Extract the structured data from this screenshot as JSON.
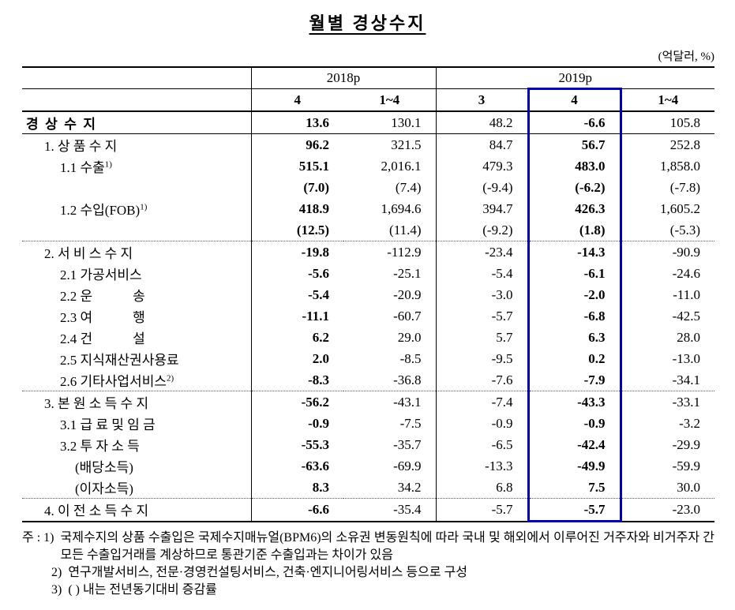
{
  "title": "월별 경상수지",
  "unit_note": "(억달러, %)",
  "colors": {
    "highlight_blue": "#0000b4",
    "rule": "#000000"
  },
  "table": {
    "column_groups": [
      {
        "label": "2018p"
      },
      {
        "label": "2019p"
      }
    ],
    "sub_headers": [
      "4",
      "1~4",
      "3",
      "4",
      "1~4"
    ],
    "rows": [
      {
        "label": "경  상  수  지",
        "indent": 0,
        "bold": true,
        "underline": true,
        "values": [
          "13.6",
          "130.1",
          "48.2",
          "-6.6",
          "105.8"
        ]
      },
      {
        "label": "1. 상 품 수 지",
        "indent": 1,
        "values": [
          "96.2",
          "321.5",
          "84.7",
          "56.7",
          "252.8"
        ]
      },
      {
        "label": "1.1 수출",
        "sup": "1)",
        "indent": 2,
        "values": [
          "515.1",
          "2,016.1",
          "479.3",
          "483.0",
          "1,858.0"
        ]
      },
      {
        "label": "",
        "indent": 2,
        "values": [
          "(7.0)",
          "(7.4)",
          "(-9.4)",
          "(-6.2)",
          "(-7.8)"
        ]
      },
      {
        "label": "1.2 수입(FOB)",
        "sup": "1)",
        "indent": 2,
        "values": [
          "418.9",
          "1,694.6",
          "394.7",
          "426.3",
          "1,605.2"
        ]
      },
      {
        "label": "",
        "indent": 2,
        "values": [
          "(12.5)",
          "(11.4)",
          "(-9.2)",
          "(1.8)",
          "(-5.3)"
        ]
      },
      {
        "label": "2. 서 비 스 수 지",
        "indent": 1,
        "separator": "dotted",
        "values": [
          "-19.8",
          "-112.9",
          "-23.4",
          "-14.3",
          "-90.9"
        ]
      },
      {
        "label": "2.1 가공서비스",
        "indent": 2,
        "values": [
          "-5.6",
          "-25.1",
          "-5.4",
          "-6.1",
          "-24.6"
        ]
      },
      {
        "label": "2.2 운　　　송",
        "indent": 2,
        "values": [
          "-5.4",
          "-20.9",
          "-3.0",
          "-2.0",
          "-11.0"
        ]
      },
      {
        "label": "2.3 여　　　행",
        "indent": 2,
        "values": [
          "-11.1",
          "-60.7",
          "-5.7",
          "-6.8",
          "-42.5"
        ]
      },
      {
        "label": "2.4 건　　　설",
        "indent": 2,
        "values": [
          "6.2",
          "29.0",
          "5.7",
          "6.3",
          "28.0"
        ]
      },
      {
        "label": "2.5 지식재산권사용료",
        "indent": 2,
        "values": [
          "2.0",
          "-8.5",
          "-9.5",
          "0.2",
          "-13.0"
        ]
      },
      {
        "label": "2.6 기타사업서비스",
        "sup": "2)",
        "indent": 2,
        "values": [
          "-8.3",
          "-36.8",
          "-7.6",
          "-7.9",
          "-34.1"
        ]
      },
      {
        "label": "3. 본 원 소 득 수 지",
        "indent": 1,
        "separator": "dotted",
        "values": [
          "-56.2",
          "-43.1",
          "-7.4",
          "-43.3",
          "-33.1"
        ]
      },
      {
        "label": "3.1 급 료 및 임 금",
        "indent": 2,
        "values": [
          "-0.9",
          "-7.5",
          "-0.9",
          "-0.9",
          "-3.2"
        ]
      },
      {
        "label": "3.2 투 자 소 득",
        "indent": 2,
        "values": [
          "-55.3",
          "-35.7",
          "-6.5",
          "-42.4",
          "-29.9"
        ]
      },
      {
        "label": "(배당소득)",
        "indent": 3,
        "values": [
          "-63.6",
          "-69.9",
          "-13.3",
          "-49.9",
          "-59.9"
        ]
      },
      {
        "label": "(이자소득)",
        "indent": 3,
        "values": [
          "8.3",
          "34.2",
          "6.8",
          "7.5",
          "30.0"
        ]
      },
      {
        "label": "4. 이 전 소 득 수 지",
        "indent": 1,
        "separator": "dotted",
        "values": [
          "-6.6",
          "-35.4",
          "-5.7",
          "-5.7",
          "-23.0"
        ]
      }
    ]
  },
  "footnotes": [
    {
      "marker": "주 : 1)",
      "text": "국제수지의 상품 수출입은 국제수지매뉴얼(BPM6)의 소유권 변동원칙에 따라 국내 및 해외에서 이루어진 거주자와 비거주자 간 모든 수출입거래를 계상하므로 통관기준 수출입과는 차이가 있음"
    },
    {
      "marker": "2)",
      "text": "연구개발서비스, 전문·경영컨설팅서비스, 건축·엔지니어링서비스 등으로 구성"
    },
    {
      "marker": "3)",
      "text": "( ) 내는 전년동기대비 증감률"
    }
  ]
}
